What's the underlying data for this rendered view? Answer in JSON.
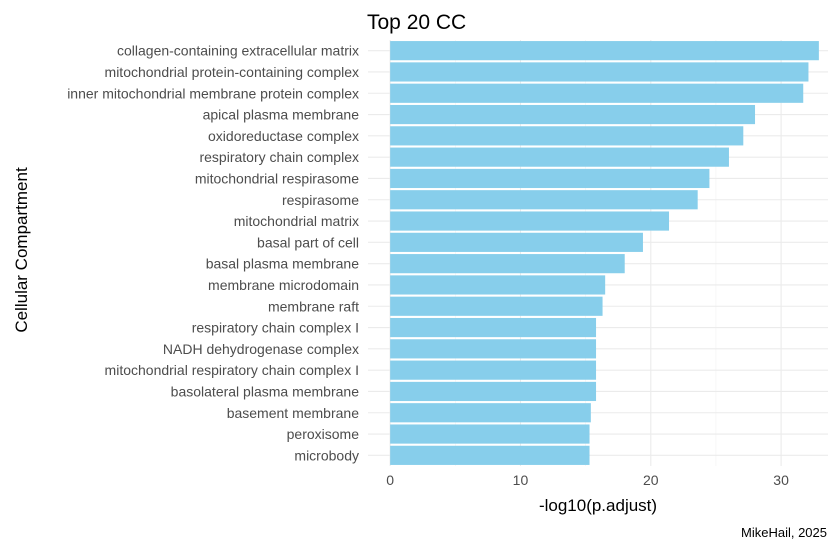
{
  "chart_data": {
    "type": "bar",
    "orientation": "horizontal",
    "title": "Top 20 CC",
    "xlabel": "-log10(p.adjust)",
    "ylabel": "Cellular Compartment",
    "caption": "MikeHail, 2025",
    "bar_color": "#87CEEB",
    "grid": true,
    "xlim": [
      -1.7,
      33.6
    ],
    "x_ticks": [
      0,
      10,
      20,
      30
    ],
    "x_tick_labels": [
      "0",
      "10",
      "20",
      "30"
    ],
    "categories": [
      "collagen-containing extracellular matrix",
      "mitochondrial protein-containing complex",
      "inner mitochondrial membrane protein complex",
      "apical plasma membrane",
      "oxidoreductase complex",
      "respiratory chain complex",
      "mitochondrial respirasome",
      "respirasome",
      "mitochondrial matrix",
      "basal part of cell",
      "basal plasma membrane",
      "membrane microdomain",
      "membrane raft",
      "respiratory chain complex I",
      "NADH dehydrogenase complex",
      "mitochondrial respiratory chain complex I",
      "basolateral plasma membrane",
      "basement membrane",
      "peroxisome",
      "microbody"
    ],
    "values": [
      32.9,
      32.1,
      31.7,
      28.0,
      27.1,
      26.0,
      24.5,
      23.6,
      21.4,
      19.4,
      18.0,
      16.5,
      16.3,
      15.8,
      15.8,
      15.8,
      15.8,
      15.4,
      15.3,
      15.3
    ]
  }
}
